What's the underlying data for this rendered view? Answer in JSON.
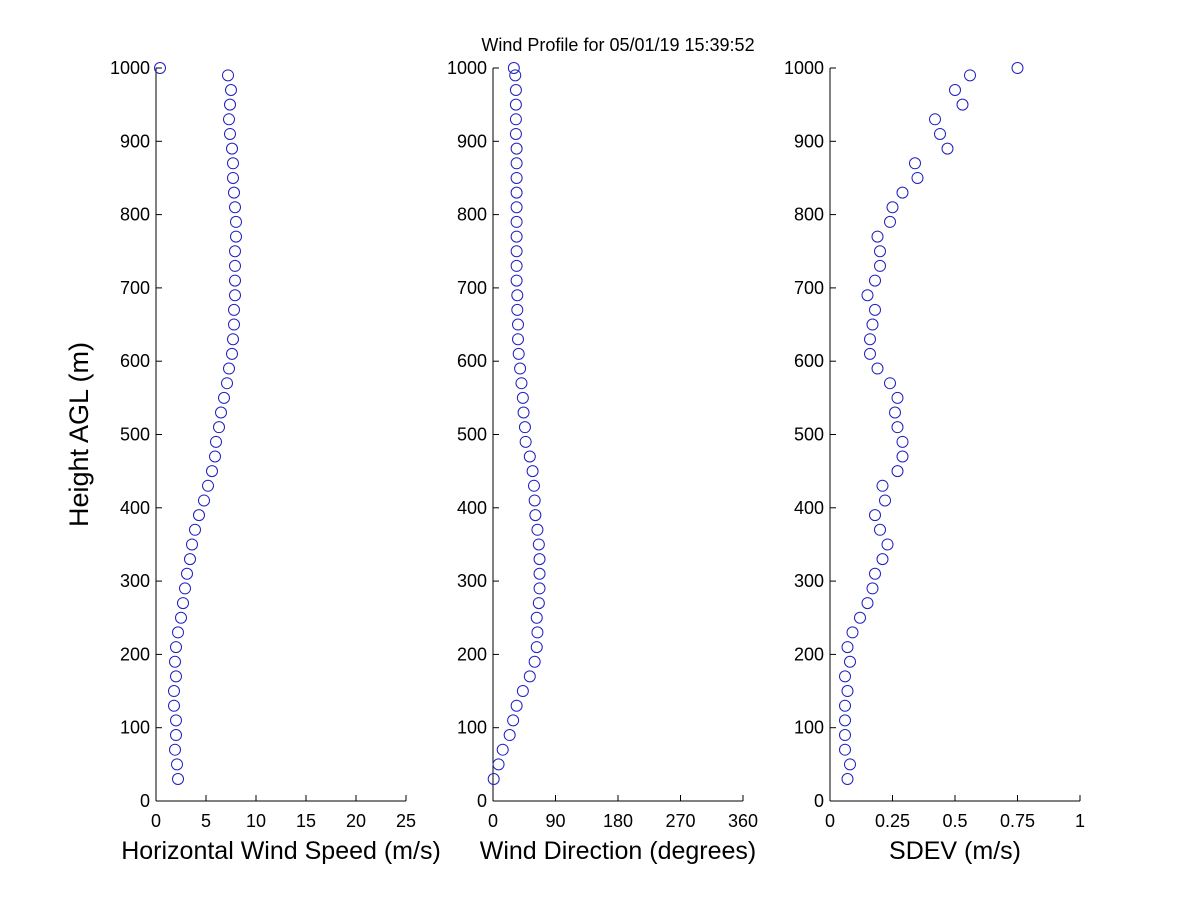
{
  "chart_data": [
    {
      "type": "scatter",
      "xlabel": "Horizontal Wind Speed (m/s)",
      "ylabel": "Height AGL (m)",
      "color": "#1f1fbf",
      "xlim": [
        0,
        25
      ],
      "xticks": [
        0,
        5,
        10,
        15,
        20,
        25
      ],
      "ylim": [
        0,
        1000
      ],
      "yticks": [
        0,
        100,
        200,
        300,
        400,
        500,
        600,
        700,
        800,
        900,
        1000
      ],
      "x": [
        2.2,
        2.1,
        1.9,
        2.0,
        2.0,
        1.8,
        1.8,
        2.0,
        1.9,
        2.0,
        2.2,
        2.5,
        2.7,
        2.9,
        3.1,
        3.4,
        3.6,
        3.9,
        4.3,
        4.8,
        5.2,
        5.6,
        5.9,
        6.0,
        6.3,
        6.5,
        6.8,
        7.1,
        7.3,
        7.6,
        7.7,
        7.8,
        7.8,
        7.9,
        7.9,
        7.9,
        7.9,
        8.0,
        8.0,
        7.9,
        7.8,
        7.7,
        7.7,
        7.6,
        7.4,
        7.3,
        7.4,
        7.5,
        7.2,
        0.4
      ],
      "y": [
        30,
        50,
        70,
        90,
        110,
        130,
        150,
        170,
        190,
        210,
        230,
        250,
        270,
        290,
        310,
        330,
        350,
        370,
        390,
        410,
        430,
        450,
        470,
        490,
        510,
        530,
        550,
        570,
        590,
        610,
        630,
        650,
        670,
        690,
        710,
        730,
        750,
        770,
        790,
        810,
        830,
        850,
        870,
        890,
        910,
        930,
        950,
        970,
        990,
        1000
      ]
    },
    {
      "type": "scatter",
      "title": "Wind Profile for  05/01/19 15:39:52",
      "xlabel": "Wind Direction (degrees)",
      "color": "#1f1fbf",
      "xlim": [
        0,
        360
      ],
      "xticks": [
        0,
        90,
        180,
        270,
        360
      ],
      "ylim": [
        0,
        1000
      ],
      "yticks": [
        0,
        100,
        200,
        300,
        400,
        500,
        600,
        700,
        800,
        900,
        1000
      ],
      "x": [
        1,
        8,
        14,
        24,
        29,
        34,
        43,
        53,
        60,
        63,
        64,
        63,
        66,
        67,
        67,
        67,
        66,
        64,
        61,
        60,
        59,
        57,
        53,
        47,
        46,
        44,
        43,
        41,
        39,
        37,
        36,
        36,
        35,
        35,
        34,
        34,
        34,
        34,
        34,
        34,
        34,
        34,
        34,
        34,
        33,
        33,
        33,
        33,
        32,
        30
      ],
      "y": [
        30,
        50,
        70,
        90,
        110,
        130,
        150,
        170,
        190,
        210,
        230,
        250,
        270,
        290,
        310,
        330,
        350,
        370,
        390,
        410,
        430,
        450,
        470,
        490,
        510,
        530,
        550,
        570,
        590,
        610,
        630,
        650,
        670,
        690,
        710,
        730,
        750,
        770,
        790,
        810,
        830,
        850,
        870,
        890,
        910,
        930,
        950,
        970,
        990,
        1000
      ]
    },
    {
      "type": "scatter",
      "xlabel": "SDEV  (m/s)",
      "color": "#1f1fbf",
      "xlim": [
        0,
        1
      ],
      "xticks": [
        0,
        0.25,
        0.5,
        0.75,
        1
      ],
      "ylim": [
        0,
        1000
      ],
      "yticks": [
        0,
        100,
        200,
        300,
        400,
        500,
        600,
        700,
        800,
        900,
        1000
      ],
      "x": [
        0.07,
        0.08,
        0.06,
        0.06,
        0.06,
        0.06,
        0.07,
        0.06,
        0.08,
        0.07,
        0.09,
        0.12,
        0.15,
        0.17,
        0.18,
        0.21,
        0.23,
        0.2,
        0.18,
        0.22,
        0.21,
        0.27,
        0.29,
        0.29,
        0.27,
        0.26,
        0.27,
        0.24,
        0.19,
        0.16,
        0.16,
        0.17,
        0.18,
        0.15,
        0.18,
        0.2,
        0.2,
        0.19,
        0.24,
        0.25,
        0.29,
        0.35,
        0.34,
        0.47,
        0.44,
        0.42,
        0.53,
        0.5,
        0.56,
        0.75
      ],
      "y": [
        30,
        50,
        70,
        90,
        110,
        130,
        150,
        170,
        190,
        210,
        230,
        250,
        270,
        290,
        310,
        330,
        350,
        370,
        390,
        410,
        430,
        450,
        470,
        490,
        510,
        530,
        550,
        570,
        590,
        610,
        630,
        650,
        670,
        690,
        710,
        730,
        750,
        770,
        790,
        810,
        830,
        850,
        870,
        890,
        910,
        930,
        950,
        970,
        990,
        1000
      ]
    }
  ]
}
